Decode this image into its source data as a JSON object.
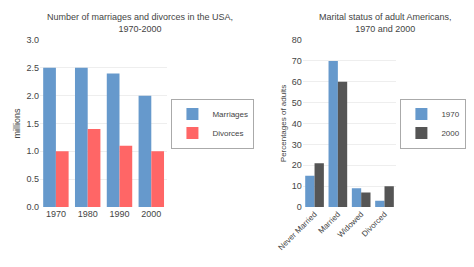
{
  "chart_data": [
    {
      "type": "bar",
      "title": "Number of marriages and divorces in the USA,\n1970-2000",
      "categories": [
        "1970",
        "1980",
        "1990",
        "2000"
      ],
      "series": [
        {
          "name": "Marriages",
          "color": "#6699CC",
          "values": [
            2.5,
            2.5,
            2.4,
            2.0
          ]
        },
        {
          "name": "Divorces",
          "color": "#FF6666",
          "values": [
            1.0,
            1.4,
            1.1,
            1.0
          ]
        }
      ],
      "ylabel": "millions",
      "ylim": [
        0,
        3
      ],
      "yticks": [
        {
          "value": 0,
          "label": "0.0"
        },
        0.5,
        {
          "value": 1,
          "label": "1.0"
        },
        1.5,
        {
          "value": 2,
          "label": "2.0"
        },
        2.5,
        {
          "value": 3,
          "label": "3.0"
        }
      ],
      "grid": true,
      "legend": "center right"
    },
    {
      "type": "bar",
      "title": "Marital status of adult Americans,\n1970 and 2000",
      "categories": [
        "Never Married",
        "Married",
        "Widowed",
        "Divorced"
      ],
      "series": [
        {
          "name": "1970",
          "color": "#6699CC",
          "values": [
            15,
            70,
            9,
            3
          ]
        },
        {
          "name": "2000",
          "color": "#555555",
          "values": [
            21,
            60,
            7,
            10
          ]
        }
      ],
      "ylabel": "Percentages of adults",
      "ylim": [
        0,
        80
      ],
      "yticks": [
        0,
        10,
        20,
        30,
        40,
        50,
        60,
        70,
        80
      ],
      "grid": true,
      "legend": "center right"
    }
  ]
}
